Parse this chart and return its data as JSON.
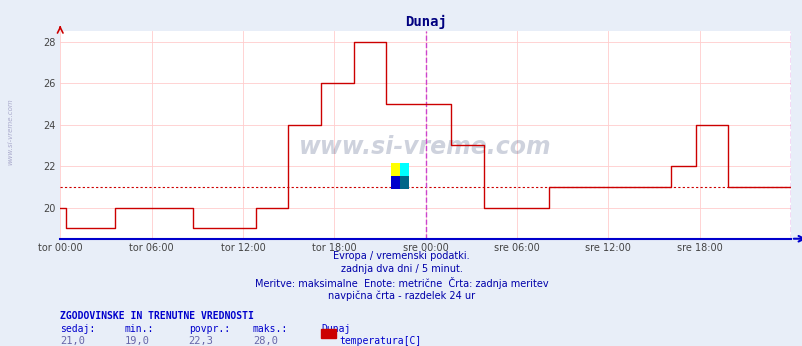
{
  "title": "Dunaj",
  "title_color": "#000080",
  "bg_color": "#e8eef8",
  "plot_bg_color": "#ffffff",
  "grid_color": "#ffcccc",
  "line_color": "#cc0000",
  "avg_line_color": "#cc0000",
  "avg_line_value": 21.0,
  "vline_color": "#cc44cc",
  "xaxis_color": "#0000cc",
  "ymin": 18.5,
  "ymax": 28.5,
  "yticks": [
    20,
    22,
    24,
    26,
    28
  ],
  "text_info_color": "#0000aa",
  "text_info": [
    "Evropa / vremenski podatki.",
    "zadnja dva dni / 5 minut.",
    "Meritve: maksimalne  Enote: metrične  Črta: zadnja meritev",
    "navpična črta - razdelek 24 ur"
  ],
  "stats_header": "ZGODOVINSKE IN TRENUTNE VREDNOSTI",
  "stats_labels": [
    "sedaj:",
    "min.:",
    "povpr.:",
    "maks.:"
  ],
  "stats_values": [
    "21,0",
    "19,0",
    "22,3",
    "28,0"
  ],
  "legend_label": "temperatura[C]",
  "legend_color": "#cc0000",
  "xtick_labels": [
    "tor 00:00",
    "tor 06:00",
    "tor 12:00",
    "tor 18:00",
    "sre 00:00",
    "sre 06:00",
    "sre 12:00",
    "sre 18:00"
  ],
  "xtick_positions": [
    0,
    0.125,
    0.25,
    0.375,
    0.5,
    0.625,
    0.75,
    0.875
  ],
  "watermark": "www.si-vreme.com",
  "left_label": "www.si-vreme.com",
  "temperature_data": [
    20.0,
    20.0,
    19.0,
    19.0,
    19.0,
    19.0,
    19.0,
    19.0,
    19.0,
    19.0,
    19.0,
    19.0,
    19.0,
    19.0,
    19.0,
    19.0,
    19.0,
    19.0,
    19.0,
    19.0,
    20.0,
    20.0,
    20.0,
    20.0,
    20.0,
    20.0,
    20.0,
    20.0,
    20.0,
    20.0,
    20.0,
    20.0,
    20.0,
    20.0,
    20.0,
    20.0,
    20.0,
    20.0,
    20.0,
    20.0,
    20.0,
    20.0,
    20.0,
    20.0,
    20.0,
    20.0,
    20.0,
    20.0,
    20.0,
    19.0,
    19.0,
    19.0,
    19.0,
    19.0,
    19.0,
    19.0,
    19.0,
    19.0,
    19.0,
    19.0,
    19.0,
    19.0,
    19.0,
    19.0,
    19.0,
    19.0,
    19.0,
    19.0,
    19.0,
    19.0,
    19.0,
    19.0,
    20.0,
    20.0,
    20.0,
    20.0,
    20.0,
    20.0,
    20.0,
    20.0,
    20.0,
    20.0,
    20.0,
    20.0,
    24.0,
    24.0,
    24.0,
    24.0,
    24.0,
    24.0,
    24.0,
    24.0,
    24.0,
    24.0,
    24.0,
    24.0,
    26.0,
    26.0,
    26.0,
    26.0,
    26.0,
    26.0,
    26.0,
    26.0,
    26.0,
    26.0,
    26.0,
    26.0,
    28.0,
    28.0,
    28.0,
    28.0,
    28.0,
    28.0,
    28.0,
    28.0,
    28.0,
    28.0,
    28.0,
    28.0,
    25.0,
    25.0,
    25.0,
    25.0,
    25.0,
    25.0,
    25.0,
    25.0,
    25.0,
    25.0,
    25.0,
    25.0,
    25.0,
    25.0,
    25.0,
    25.0,
    25.0,
    25.0,
    25.0,
    25.0,
    25.0,
    25.0,
    25.0,
    25.0,
    23.0,
    23.0,
    23.0,
    23.0,
    23.0,
    23.0,
    23.0,
    23.0,
    23.0,
    23.0,
    23.0,
    23.0,
    20.0,
    20.0,
    20.0,
    20.0,
    20.0,
    20.0,
    20.0,
    20.0,
    20.0,
    20.0,
    20.0,
    20.0,
    20.0,
    20.0,
    20.0,
    20.0,
    20.0,
    20.0,
    20.0,
    20.0,
    20.0,
    20.0,
    20.0,
    20.0,
    21.0,
    21.0,
    21.0,
    21.0,
    21.0,
    21.0,
    21.0,
    21.0,
    21.0,
    21.0,
    21.0,
    21.0,
    21.0,
    21.0,
    21.0,
    21.0,
    21.0,
    21.0,
    21.0,
    21.0,
    21.0,
    21.0,
    21.0,
    21.0,
    21.0,
    21.0,
    21.0,
    21.0,
    21.0,
    21.0,
    21.0,
    21.0,
    21.0,
    21.0,
    21.0,
    21.0,
    21.0,
    21.0,
    21.0,
    21.0,
    21.0,
    21.0,
    21.0,
    21.0,
    21.0,
    22.0,
    22.0,
    22.0,
    22.0,
    22.0,
    22.0,
    22.0,
    22.0,
    22.0,
    24.0,
    24.0,
    24.0,
    24.0,
    24.0,
    24.0,
    24.0,
    24.0,
    24.0,
    24.0,
    24.0,
    24.0,
    21.0,
    21.0,
    21.0,
    21.0,
    21.0,
    21.0,
    21.0,
    21.0,
    21.0,
    21.0,
    21.0,
    21.0,
    21.0,
    21.0,
    21.0,
    21.0,
    21.0,
    21.0,
    21.0,
    21.0,
    21.0,
    21.0,
    21.0,
    21.0
  ]
}
